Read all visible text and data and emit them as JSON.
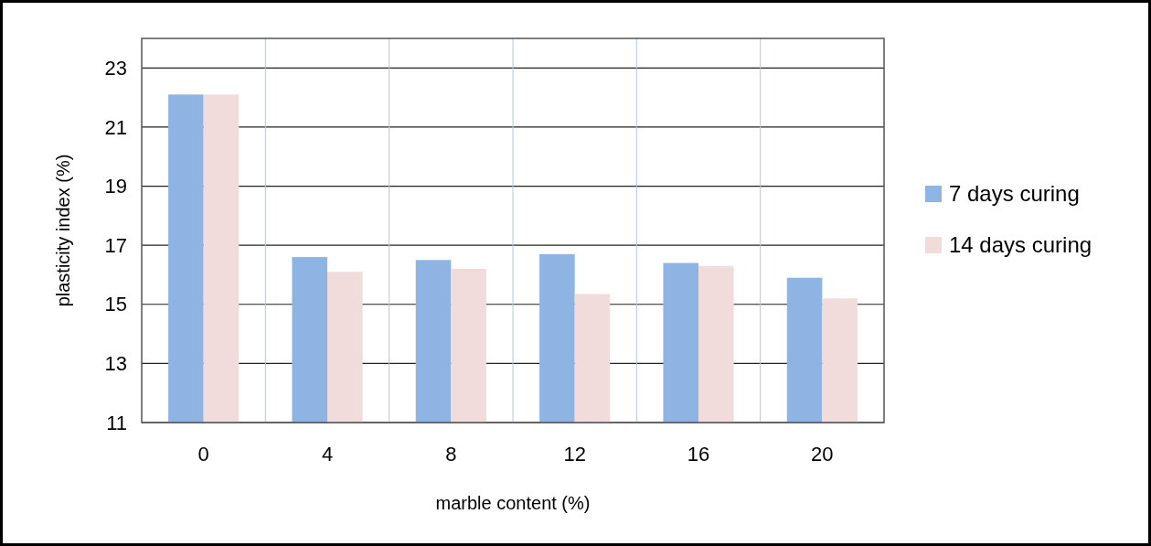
{
  "chart_data": {
    "type": "bar",
    "xlabel": "marble content (%)",
    "ylabel": "plasticity index (%)",
    "categories": [
      "0",
      "4",
      "8",
      "12",
      "16",
      "20"
    ],
    "series": [
      {
        "name": "7 days curing",
        "color": "#8eb4e3",
        "values": [
          22.1,
          16.6,
          16.5,
          16.7,
          16.4,
          15.9
        ]
      },
      {
        "name": "14 days curing",
        "color": "#f2dcdb",
        "values": [
          22.1,
          16.1,
          16.2,
          15.35,
          16.3,
          15.2
        ]
      }
    ],
    "ylim": [
      11,
      24
    ],
    "yticks": [
      11,
      13,
      15,
      17,
      19,
      21,
      23
    ],
    "grid": true,
    "legend": "right"
  }
}
